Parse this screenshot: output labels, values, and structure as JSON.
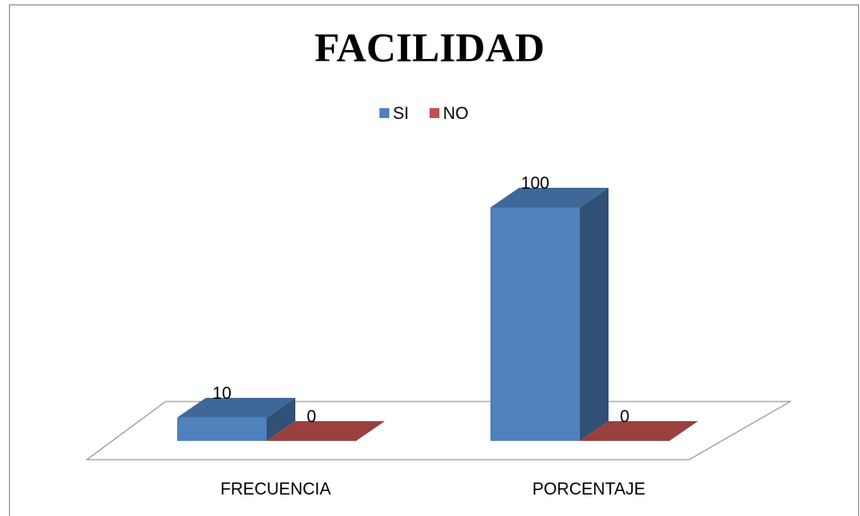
{
  "chart_data": {
    "type": "bar3d",
    "title": "FACILIDAD",
    "categories": [
      "FRECUENCIA",
      "PORCENTAJE"
    ],
    "series": [
      {
        "name": "SI",
        "color": "#4f81bd",
        "values": [
          10,
          100
        ]
      },
      {
        "name": "NO",
        "color": "#c0504d",
        "values": [
          0,
          0
        ]
      }
    ],
    "legend": "top"
  }
}
